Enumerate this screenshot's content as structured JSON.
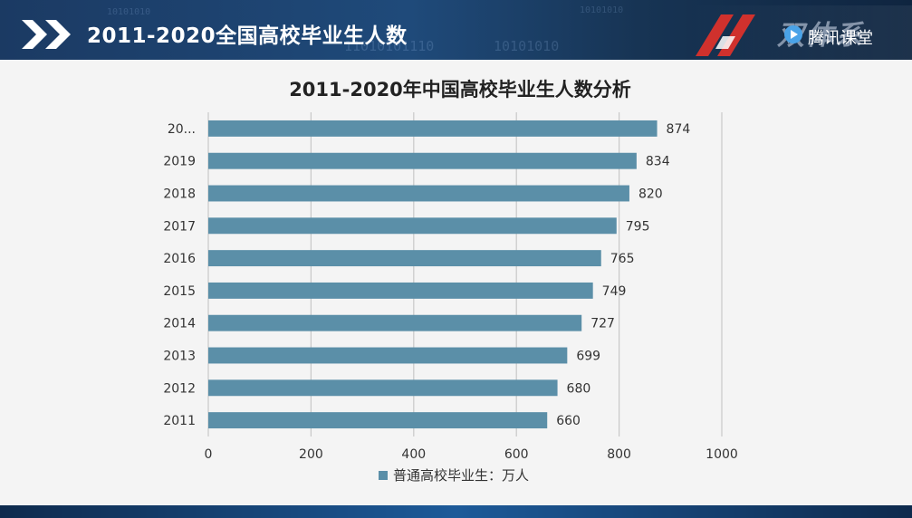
{
  "header": {
    "title": "2011-2020全国高校毕业生人数",
    "brand": "双体系",
    "platform": "腾讯课堂",
    "background_code": [
      "10101010",
      "11010101110",
      "10101010",
      "10101010"
    ]
  },
  "colors": {
    "header": "#1f4a7a",
    "bar": "#5b8fa8",
    "grid": "#c8c8c8",
    "logo_red": "#d0312d"
  },
  "chart_data": {
    "type": "bar",
    "orientation": "horizontal",
    "title": "2011-2020年中国高校毕业生人数分析",
    "categories": [
      "2011",
      "2012",
      "2013",
      "2014",
      "2015",
      "2016",
      "2017",
      "2018",
      "2019",
      "20..."
    ],
    "series": [
      {
        "name": "普通高校毕业生：万人",
        "values": [
          660,
          680,
          699,
          727,
          749,
          765,
          795,
          820,
          834,
          874
        ]
      }
    ],
    "xlim": [
      0,
      1000
    ],
    "xticks": [
      "0",
      "200",
      "400",
      "600",
      "800",
      "1000"
    ],
    "grid": "vertical",
    "legend": "bottom"
  }
}
